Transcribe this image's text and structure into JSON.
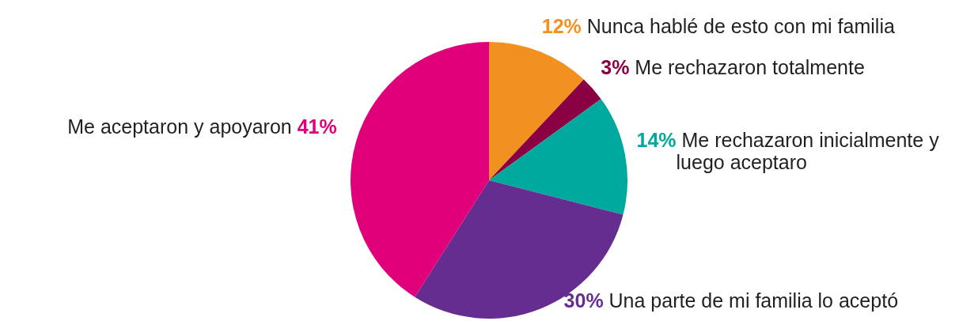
{
  "chart_data": {
    "type": "pie",
    "categories": [
      "Nunca hablé de esto con mi familia",
      "Me rechazaron totalmente",
      "Me rechazaron inicialmente y luego aceptaro",
      "Una parte de mi familia lo aceptó",
      "Me aceptaron y apoyaron"
    ],
    "values": [
      12,
      3,
      14,
      30,
      41
    ],
    "colors": [
      "#f39120",
      "#8b0042",
      "#00a99d",
      "#662d91",
      "#e0007a"
    ],
    "value_labels": [
      "12%",
      "3%",
      "14%",
      "30%",
      "41%"
    ],
    "legend": false
  }
}
